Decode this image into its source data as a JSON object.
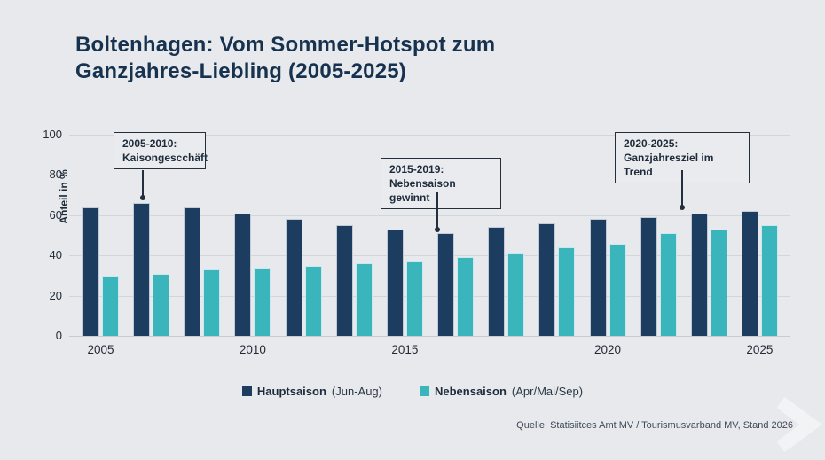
{
  "header": {
    "title_line1": "Boltenhagen: Vom Sommer-Hotspot zum",
    "title_line2": "Ganzjahres-Liebling (2005-2025)"
  },
  "chart_data": {
    "type": "bar",
    "title": "Boltenhagen: Vom Sommer-Hotspot zum Ganzjahres-Liebling (2005-2025)",
    "ylabel": "Anteil in %",
    "ylim": [
      0,
      100
    ],
    "yticks": [
      0,
      20,
      40,
      60,
      80,
      100
    ],
    "grid": true,
    "n_groups": 14,
    "xtick_labels": [
      {
        "index": 0,
        "label": "2005"
      },
      {
        "index": 3,
        "label": "2010"
      },
      {
        "index": 6,
        "label": "2015"
      },
      {
        "index": 10,
        "label": "2020"
      },
      {
        "index": 13,
        "label": "2025"
      }
    ],
    "series": [
      {
        "name": "Hauptsaison",
        "detail": "(Jun-Aug)",
        "color": "#1c3d60",
        "values": [
          64,
          66,
          64,
          61,
          58,
          55,
          53,
          51,
          54,
          56,
          58,
          59,
          61,
          62
        ]
      },
      {
        "name": "Nebensaison",
        "detail": "(Apr/Mai/Sep)",
        "color": "#3ab5bc",
        "values": [
          30,
          31,
          33,
          34,
          35,
          36,
          37,
          39,
          41,
          44,
          46,
          51,
          53,
          55
        ]
      }
    ],
    "legend_position": "bottom",
    "annotations": [
      {
        "line1": "2005-2010:",
        "line2": "Kaisongescchäft"
      },
      {
        "line1": "2015-2019:",
        "line2": "Nebensaison gewinnt"
      },
      {
        "line1": "2020-2025:",
        "line2": "Ganzjahresziel im Trend"
      }
    ]
  },
  "source": "Quelle: Statisiitces Amt MV / Tourismusvarband MV, Stand 2026",
  "colors": {
    "background": "#e7e9ed",
    "title_text": "#16324e",
    "hauptsaison_bar": "#1c3d60",
    "nebensaison_bar": "#3ab5bc",
    "gridline": "#d2d6db"
  }
}
